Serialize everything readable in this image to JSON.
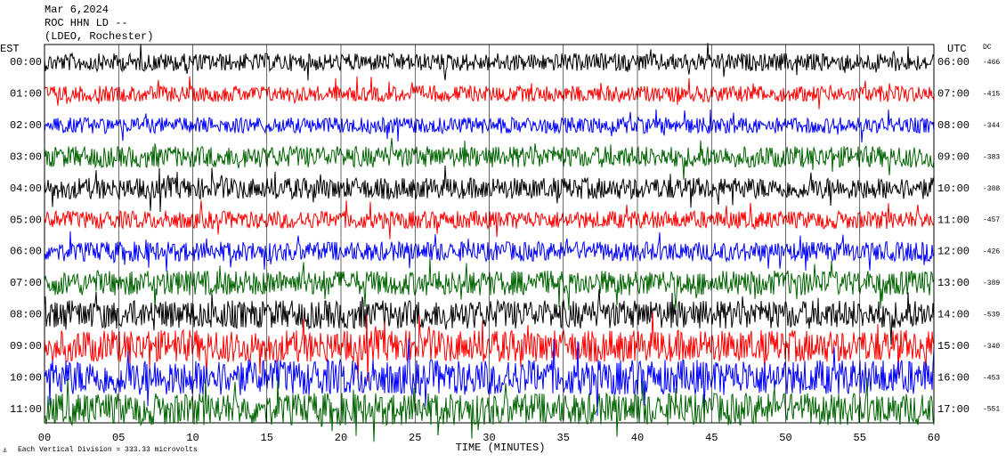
{
  "header": {
    "date": "Mar 6,2024",
    "station": "ROC HHN LD --",
    "location": "(LDEO, Rochester)"
  },
  "chart_data": {
    "type": "helicorder",
    "left_axis_label": "EST",
    "right_axis_label": "UTC",
    "offset_label": "DC",
    "x_label": "TIME (MINUTES)",
    "xlim": [
      0,
      60
    ],
    "xticks": [
      {
        "value": 0,
        "label": "00"
      },
      {
        "value": 5,
        "label": "05"
      },
      10,
      15,
      20,
      25,
      30,
      35,
      40,
      45,
      50,
      55,
      60
    ],
    "rows": [
      {
        "est": "00:00",
        "utc": "06:00",
        "dc": -466,
        "color": "#000000"
      },
      {
        "est": "01:00",
        "utc": "07:00",
        "dc": -415,
        "color": "#ff0000"
      },
      {
        "est": "02:00",
        "utc": "08:00",
        "dc": -344,
        "color": "#0000ff"
      },
      {
        "est": "03:00",
        "utc": "09:00",
        "dc": -383,
        "color": "#006400"
      },
      {
        "est": "04:00",
        "utc": "10:00",
        "dc": -388,
        "color": "#000000"
      },
      {
        "est": "05:00",
        "utc": "11:00",
        "dc": -457,
        "color": "#ff0000"
      },
      {
        "est": "06:00",
        "utc": "12:00",
        "dc": -426,
        "color": "#0000ff"
      },
      {
        "est": "07:00",
        "utc": "13:00",
        "dc": -389,
        "color": "#006400"
      },
      {
        "est": "08:00",
        "utc": "14:00",
        "dc": -539,
        "color": "#000000"
      },
      {
        "est": "09:00",
        "utc": "15:00",
        "dc": -340,
        "color": "#ff0000"
      },
      {
        "est": "10:00",
        "utc": "16:00",
        "dc": -453,
        "color": "#0000ff"
      },
      {
        "est": "11:00",
        "utc": "17:00",
        "dc": -551,
        "color": "#006400"
      }
    ],
    "footnote": "Each Vertical Division =  333.33 microvolts"
  }
}
